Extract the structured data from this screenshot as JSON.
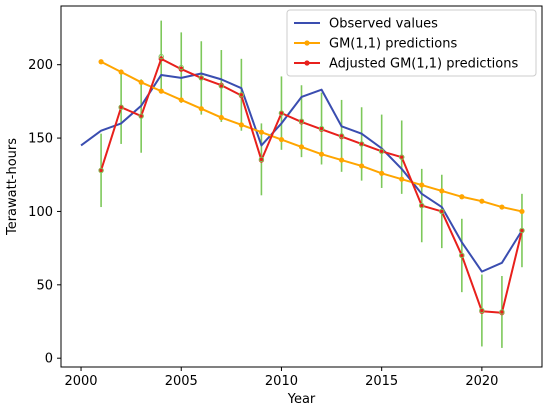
{
  "chart_data": {
    "type": "line",
    "xlabel": "Year",
    "ylabel": "Terawatt-hours",
    "xlim": [
      1999,
      2023
    ],
    "ylim": [
      -6,
      240
    ],
    "xticks": [
      2000,
      2005,
      2010,
      2015,
      2020
    ],
    "yticks": [
      0,
      50,
      100,
      150,
      200
    ],
    "grid": false,
    "legend_position": "top-right",
    "series": [
      {
        "name": "Observed values",
        "color": "#3a4db0",
        "marker": "none",
        "x": [
          2000,
          2001,
          2002,
          2003,
          2004,
          2005,
          2006,
          2007,
          2008,
          2009,
          2010,
          2011,
          2012,
          2013,
          2014,
          2015,
          2016,
          2017,
          2018,
          2019,
          2020,
          2021,
          2022
        ],
        "y": [
          145,
          155,
          160,
          172,
          193,
          191,
          194,
          190,
          184,
          145,
          160,
          178,
          183,
          158,
          153,
          143,
          129,
          112,
          103,
          79,
          59,
          65,
          87
        ]
      },
      {
        "name": "GM(1,1) predictions",
        "color": "#ffa500",
        "marker": "dot",
        "x": [
          2001,
          2002,
          2003,
          2004,
          2005,
          2006,
          2007,
          2008,
          2009,
          2010,
          2011,
          2012,
          2013,
          2014,
          2015,
          2016,
          2017,
          2018,
          2019,
          2020,
          2021,
          2022
        ],
        "y": [
          202,
          195,
          188,
          182,
          176,
          170,
          164,
          159,
          154,
          149,
          144,
          139,
          135,
          131,
          126,
          122,
          118,
          114,
          110,
          107,
          103,
          100
        ]
      },
      {
        "name": "Adjusted GM(1,1) predictions",
        "color": "#e8201c",
        "marker": "dot",
        "x": [
          2001,
          2002,
          2003,
          2004,
          2005,
          2006,
          2007,
          2008,
          2009,
          2010,
          2011,
          2012,
          2013,
          2014,
          2015,
          2016,
          2017,
          2018,
          2019,
          2020,
          2021,
          2022
        ],
        "y": [
          128,
          171,
          165,
          204,
          197,
          191,
          186,
          179,
          135,
          167,
          161,
          156,
          151,
          146,
          141,
          137,
          104,
          100,
          70,
          32,
          31,
          87
        ]
      }
    ],
    "error_bars": {
      "color": "#7dc85a",
      "applies_to": "Adjusted GM(1,1) predictions",
      "x": [
        2001,
        2002,
        2003,
        2004,
        2005,
        2006,
        2007,
        2008,
        2009,
        2010,
        2011,
        2012,
        2013,
        2014,
        2015,
        2016,
        2017,
        2018,
        2019,
        2020,
        2021,
        2022
      ],
      "low": [
        103,
        146,
        140,
        181,
        174,
        166,
        161,
        155,
        111,
        142,
        137,
        132,
        127,
        121,
        116,
        112,
        79,
        75,
        45,
        8,
        7,
        62
      ],
      "high": [
        153,
        196,
        190,
        230,
        222,
        216,
        210,
        204,
        160,
        192,
        186,
        181,
        176,
        171,
        166,
        162,
        129,
        125,
        95,
        57,
        56,
        112
      ]
    }
  }
}
